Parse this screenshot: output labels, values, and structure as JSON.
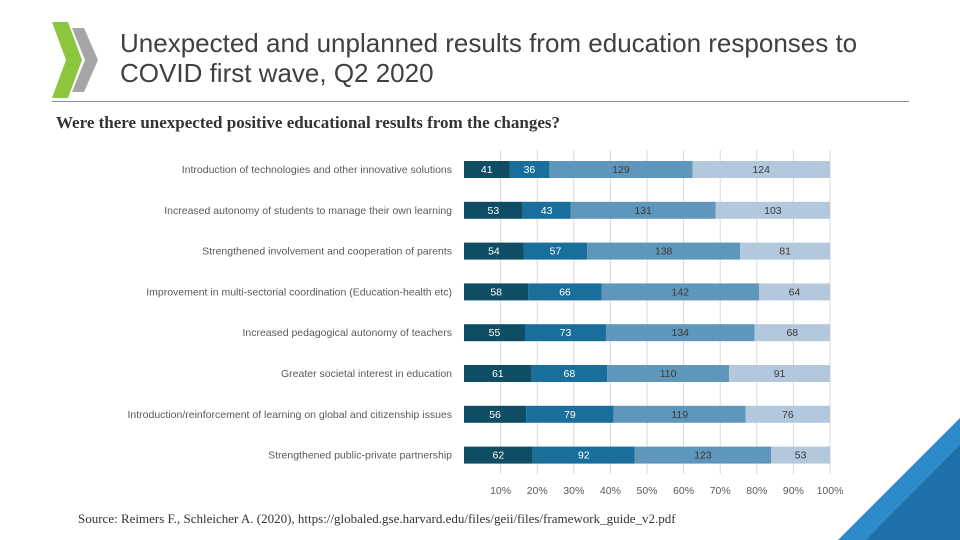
{
  "title": {
    "line1": "Unexpected and unplanned results from education responses to",
    "line2": "COVID first wave, Q2 2020"
  },
  "subtitle": "Were there unexpected positive educational results from the changes?",
  "source": "Source: Reimers F., Schleicher A. (2020), https://globaled.gse.harvard.edu/files/geii/files/framework_guide_v2.pdf",
  "logo": {
    "icon": "oecd-chevron-logo",
    "colors": [
      "#8cc63f",
      "#9b9b9b"
    ]
  },
  "corner_decoration": {
    "colors": [
      "#1f6fa8",
      "#2e8bc9"
    ]
  },
  "chart_data": {
    "type": "bar",
    "orientation": "horizontal",
    "stacked": true,
    "normalized": true,
    "categories": [
      "Introduction of technologies and other innovative solutions",
      "Increased autonomy of students to manage their own learning",
      "Strengthened involvement and cooperation of parents",
      "Improvement in multi-sectorial coordination (Education-health etc)",
      "Increased pedagogical autonomy of teachers",
      "Greater societal interest in education",
      "Introduction/reinforcement of learning on global and citizenship issues",
      "Strengthened public-private partnership"
    ],
    "series": [
      {
        "values": [
          41,
          53,
          54,
          58,
          55,
          61,
          56,
          62
        ],
        "color": "#0e4d64"
      },
      {
        "values": [
          36,
          43,
          57,
          66,
          73,
          68,
          79,
          92
        ],
        "color": "#1a6e9b"
      },
      {
        "values": [
          129,
          131,
          138,
          142,
          134,
          110,
          119,
          123
        ],
        "color": "#5f97bc"
      },
      {
        "values": [
          124,
          103,
          81,
          64,
          68,
          91,
          76,
          53
        ],
        "color": "#b3c7dd"
      }
    ],
    "xticks": [
      "10%",
      "20%",
      "30%",
      "40%",
      "50%",
      "60%",
      "70%",
      "80%",
      "90%",
      "100%"
    ],
    "xlim": [
      0,
      100
    ],
    "grid": true,
    "legend": "none",
    "data_labels": true
  }
}
